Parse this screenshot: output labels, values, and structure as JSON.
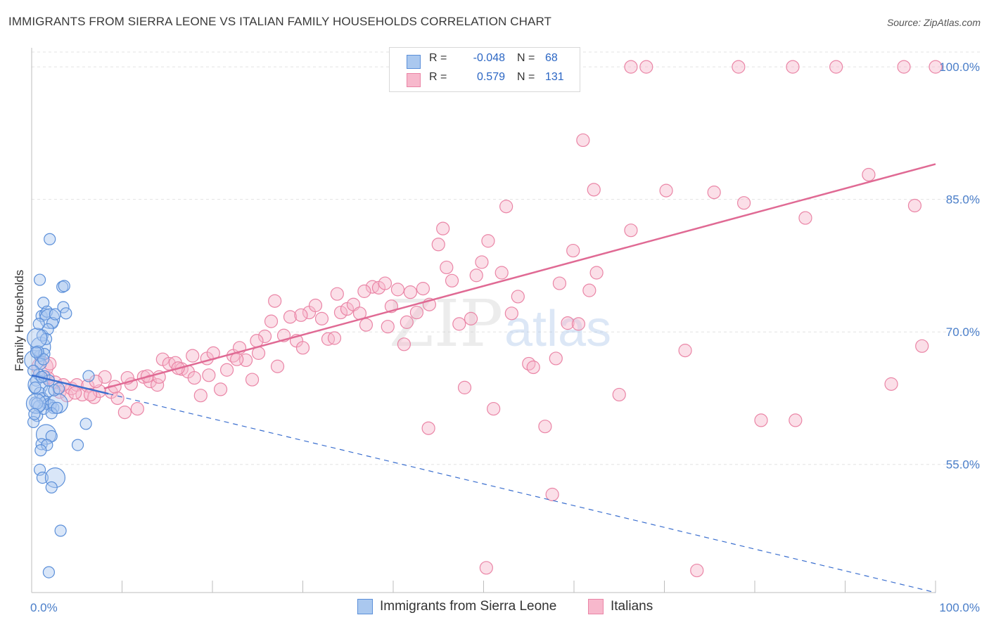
{
  "header": {
    "title": "IMMIGRANTS FROM SIERRA LEONE VS ITALIAN FAMILY HOUSEHOLDS CORRELATION CHART",
    "source": "Source: ZipAtlas.com"
  },
  "watermark": {
    "zip": "ZIP",
    "atlas": "atlas"
  },
  "legend": {
    "rows": [
      {
        "r_label": "R =",
        "r_value": "-0.048",
        "n_label": "N =",
        "n_value": "68"
      },
      {
        "r_label": "R =",
        "r_value": "0.579",
        "n_label": "N =",
        "n_value": "131"
      }
    ]
  },
  "bottom_legend": [
    "Immigrants from Sierra Leone",
    "Italians"
  ],
  "colors": {
    "blue_fill": "#aac8ef",
    "blue_stroke": "#5b8fd9",
    "blue_line": "#3b6fcf",
    "pink_fill": "#f7b8cc",
    "pink_stroke": "#ea85a6",
    "pink_line": "#e06a94",
    "grid": "#e3e3e3",
    "tick_text": "#4a7ec9"
  },
  "chart_data": {
    "type": "scatter",
    "title": "IMMIGRANTS FROM SIERRA LEONE VS ITALIAN FAMILY HOUSEHOLDS CORRELATION CHART",
    "xlabel": "",
    "ylabel": "Family Households",
    "xlim": [
      0,
      100
    ],
    "ylim": [
      40.5,
      102
    ],
    "x_tick_labels": [
      "0.0%",
      "100.0%"
    ],
    "y_ticks": [
      55,
      70,
      85,
      100
    ],
    "y_tick_labels": [
      "55.0%",
      "70.0%",
      "85.0%",
      "100.0%"
    ],
    "grid": true,
    "legend_position": "top-center",
    "series": [
      {
        "name": "Immigrants from Sierra Leone",
        "color": "blue",
        "r": -0.048,
        "n": 68,
        "trend": {
          "x": [
            0,
            8.5
          ],
          "y": [
            65.1,
            63.0
          ],
          "dashed_extension": {
            "x": [
              8.5,
              100
            ],
            "y": [
              63.0,
              40.5
            ]
          }
        },
        "points": [
          [
            0.3,
            66.8
          ],
          [
            0.5,
            64.5
          ],
          [
            0.4,
            62.0
          ],
          [
            0.6,
            60.5
          ],
          [
            0.2,
            59.8
          ],
          [
            0.8,
            65.2
          ],
          [
            0.9,
            67.3
          ],
          [
            1.0,
            68.3
          ],
          [
            1.2,
            69.6
          ],
          [
            1.1,
            71.8
          ],
          [
            1.3,
            73.3
          ],
          [
            0.9,
            75.9
          ],
          [
            1.5,
            72.0
          ],
          [
            1.7,
            72.3
          ],
          [
            2.0,
            71.5
          ],
          [
            2.3,
            71.0
          ],
          [
            2.6,
            72.0
          ],
          [
            1.8,
            70.3
          ],
          [
            1.6,
            69.2
          ],
          [
            1.4,
            67.5
          ],
          [
            1.0,
            66.4
          ],
          [
            0.7,
            64.0
          ],
          [
            0.9,
            63.1
          ],
          [
            1.2,
            62.5
          ],
          [
            1.5,
            62.1
          ],
          [
            1.8,
            61.8
          ],
          [
            2.1,
            61.7
          ],
          [
            2.4,
            61.4
          ],
          [
            2.9,
            61.9
          ],
          [
            1.3,
            61.3
          ],
          [
            0.8,
            61.6
          ],
          [
            0.6,
            61.9
          ],
          [
            1.9,
            63.3
          ],
          [
            2.5,
            63.4
          ],
          [
            3.0,
            63.6
          ],
          [
            1.6,
            58.4
          ],
          [
            2.2,
            58.2
          ],
          [
            1.1,
            57.3
          ],
          [
            1.7,
            57.2
          ],
          [
            1.0,
            56.6
          ],
          [
            0.9,
            54.4
          ],
          [
            1.2,
            53.5
          ],
          [
            2.6,
            53.5
          ],
          [
            2.2,
            52.4
          ],
          [
            3.2,
            47.5
          ],
          [
            1.9,
            42.8
          ],
          [
            2.0,
            80.5
          ],
          [
            3.4,
            75.1
          ],
          [
            3.6,
            75.2
          ],
          [
            3.5,
            72.8
          ],
          [
            3.8,
            72.1
          ],
          [
            6.3,
            65.0
          ],
          [
            6.0,
            59.6
          ],
          [
            5.1,
            57.2
          ],
          [
            0.2,
            65.6
          ],
          [
            0.4,
            63.7
          ],
          [
            0.5,
            61.9
          ],
          [
            0.3,
            60.7
          ],
          [
            0.7,
            67.8
          ],
          [
            1.4,
            65.0
          ],
          [
            1.9,
            64.5
          ],
          [
            2.2,
            60.8
          ],
          [
            2.8,
            61.4
          ],
          [
            0.6,
            69.3
          ],
          [
            0.8,
            70.9
          ],
          [
            1.1,
            64.9
          ],
          [
            1.3,
            66.9
          ],
          [
            0.5,
            67.7
          ]
        ]
      },
      {
        "name": "Italians",
        "color": "pink",
        "r": 0.579,
        "n": 131,
        "trend": {
          "x": [
            8,
            100
          ],
          "y": [
            63.6,
            89.0
          ]
        },
        "points": [
          [
            1.2,
            66.0
          ],
          [
            1.8,
            64.8
          ],
          [
            2.6,
            64.3
          ],
          [
            3.1,
            63.2
          ],
          [
            3.9,
            62.8
          ],
          [
            4.4,
            63.6
          ],
          [
            5.0,
            64.0
          ],
          [
            5.6,
            62.9
          ],
          [
            6.2,
            63.9
          ],
          [
            6.9,
            62.6
          ],
          [
            7.5,
            63.3
          ],
          [
            8.1,
            64.9
          ],
          [
            8.8,
            63.2
          ],
          [
            9.5,
            62.5
          ],
          [
            10.3,
            60.9
          ],
          [
            11.0,
            64.1
          ],
          [
            11.7,
            61.3
          ],
          [
            12.4,
            64.9
          ],
          [
            13.1,
            64.4
          ],
          [
            13.9,
            64.0
          ],
          [
            14.5,
            66.9
          ],
          [
            15.2,
            66.4
          ],
          [
            15.9,
            66.5
          ],
          [
            16.6,
            65.8
          ],
          [
            17.3,
            65.5
          ],
          [
            18.0,
            64.8
          ],
          [
            18.7,
            62.8
          ],
          [
            19.4,
            67.0
          ],
          [
            20.1,
            67.6
          ],
          [
            20.9,
            63.5
          ],
          [
            21.6,
            65.7
          ],
          [
            22.3,
            67.3
          ],
          [
            23.0,
            68.2
          ],
          [
            23.7,
            66.8
          ],
          [
            24.4,
            64.6
          ],
          [
            25.1,
            67.6
          ],
          [
            25.8,
            69.5
          ],
          [
            26.5,
            71.2
          ],
          [
            27.2,
            66.1
          ],
          [
            27.9,
            69.6
          ],
          [
            28.6,
            71.7
          ],
          [
            29.3,
            69.0
          ],
          [
            30.0,
            68.2
          ],
          [
            30.7,
            72.2
          ],
          [
            31.4,
            73.0
          ],
          [
            32.1,
            71.5
          ],
          [
            32.8,
            69.2
          ],
          [
            33.5,
            69.3
          ],
          [
            34.2,
            72.2
          ],
          [
            34.9,
            72.6
          ],
          [
            35.6,
            73.1
          ],
          [
            36.3,
            72.1
          ],
          [
            37.0,
            70.8
          ],
          [
            37.7,
            75.1
          ],
          [
            38.4,
            75.0
          ],
          [
            39.1,
            75.5
          ],
          [
            39.8,
            72.9
          ],
          [
            40.5,
            74.8
          ],
          [
            41.2,
            68.6
          ],
          [
            41.9,
            74.5
          ],
          [
            42.6,
            72.2
          ],
          [
            43.3,
            74.9
          ],
          [
            44.0,
            73.1
          ],
          [
            45.0,
            79.9
          ],
          [
            45.5,
            81.7
          ],
          [
            45.9,
            77.3
          ],
          [
            46.5,
            75.8
          ],
          [
            47.3,
            70.9
          ],
          [
            47.9,
            63.7
          ],
          [
            48.6,
            71.5
          ],
          [
            49.2,
            76.4
          ],
          [
            49.8,
            77.9
          ],
          [
            50.5,
            80.3
          ],
          [
            51.1,
            61.3
          ],
          [
            52.0,
            76.7
          ],
          [
            52.5,
            84.2
          ],
          [
            53.1,
            72.1
          ],
          [
            53.8,
            74.0
          ],
          [
            55.0,
            66.4
          ],
          [
            55.5,
            66.0
          ],
          [
            56.8,
            59.3
          ],
          [
            57.6,
            51.6
          ],
          [
            58.0,
            67.0
          ],
          [
            58.4,
            75.5
          ],
          [
            59.3,
            71.0
          ],
          [
            59.9,
            79.2
          ],
          [
            60.5,
            70.9
          ],
          [
            61.0,
            91.7
          ],
          [
            61.7,
            74.7
          ],
          [
            62.2,
            86.1
          ],
          [
            62.5,
            76.7
          ],
          [
            65.0,
            62.9
          ],
          [
            66.3,
            81.5
          ],
          [
            68.0,
            100.0
          ],
          [
            70.2,
            86.0
          ],
          [
            72.3,
            67.9
          ],
          [
            73.6,
            43.0
          ],
          [
            75.5,
            85.8
          ],
          [
            78.2,
            100.0
          ],
          [
            78.8,
            84.6
          ],
          [
            80.7,
            60.0
          ],
          [
            84.2,
            100.0
          ],
          [
            84.5,
            60.0
          ],
          [
            85.6,
            82.9
          ],
          [
            89.0,
            100.0
          ],
          [
            92.6,
            87.8
          ],
          [
            95.1,
            64.1
          ],
          [
            100.0,
            100.0
          ],
          [
            96.5,
            100.0
          ],
          [
            97.7,
            84.3
          ],
          [
            98.5,
            68.4
          ],
          [
            43.9,
            59.1
          ],
          [
            50.3,
            43.3
          ],
          [
            66.3,
            100.0
          ],
          [
            2.0,
            66.4
          ],
          [
            3.5,
            64.0
          ],
          [
            4.8,
            63.1
          ],
          [
            6.5,
            62.9
          ],
          [
            7.1,
            64.4
          ],
          [
            9.2,
            63.8
          ],
          [
            10.6,
            64.8
          ],
          [
            12.8,
            65.0
          ],
          [
            14.1,
            64.9
          ],
          [
            16.2,
            65.9
          ],
          [
            17.8,
            67.3
          ],
          [
            19.6,
            65.1
          ],
          [
            22.7,
            66.9
          ],
          [
            24.9,
            69.0
          ],
          [
            26.9,
            73.5
          ],
          [
            29.8,
            71.9
          ],
          [
            33.8,
            74.3
          ],
          [
            36.8,
            74.6
          ],
          [
            39.4,
            70.6
          ],
          [
            41.5,
            71.1
          ]
        ]
      }
    ]
  }
}
